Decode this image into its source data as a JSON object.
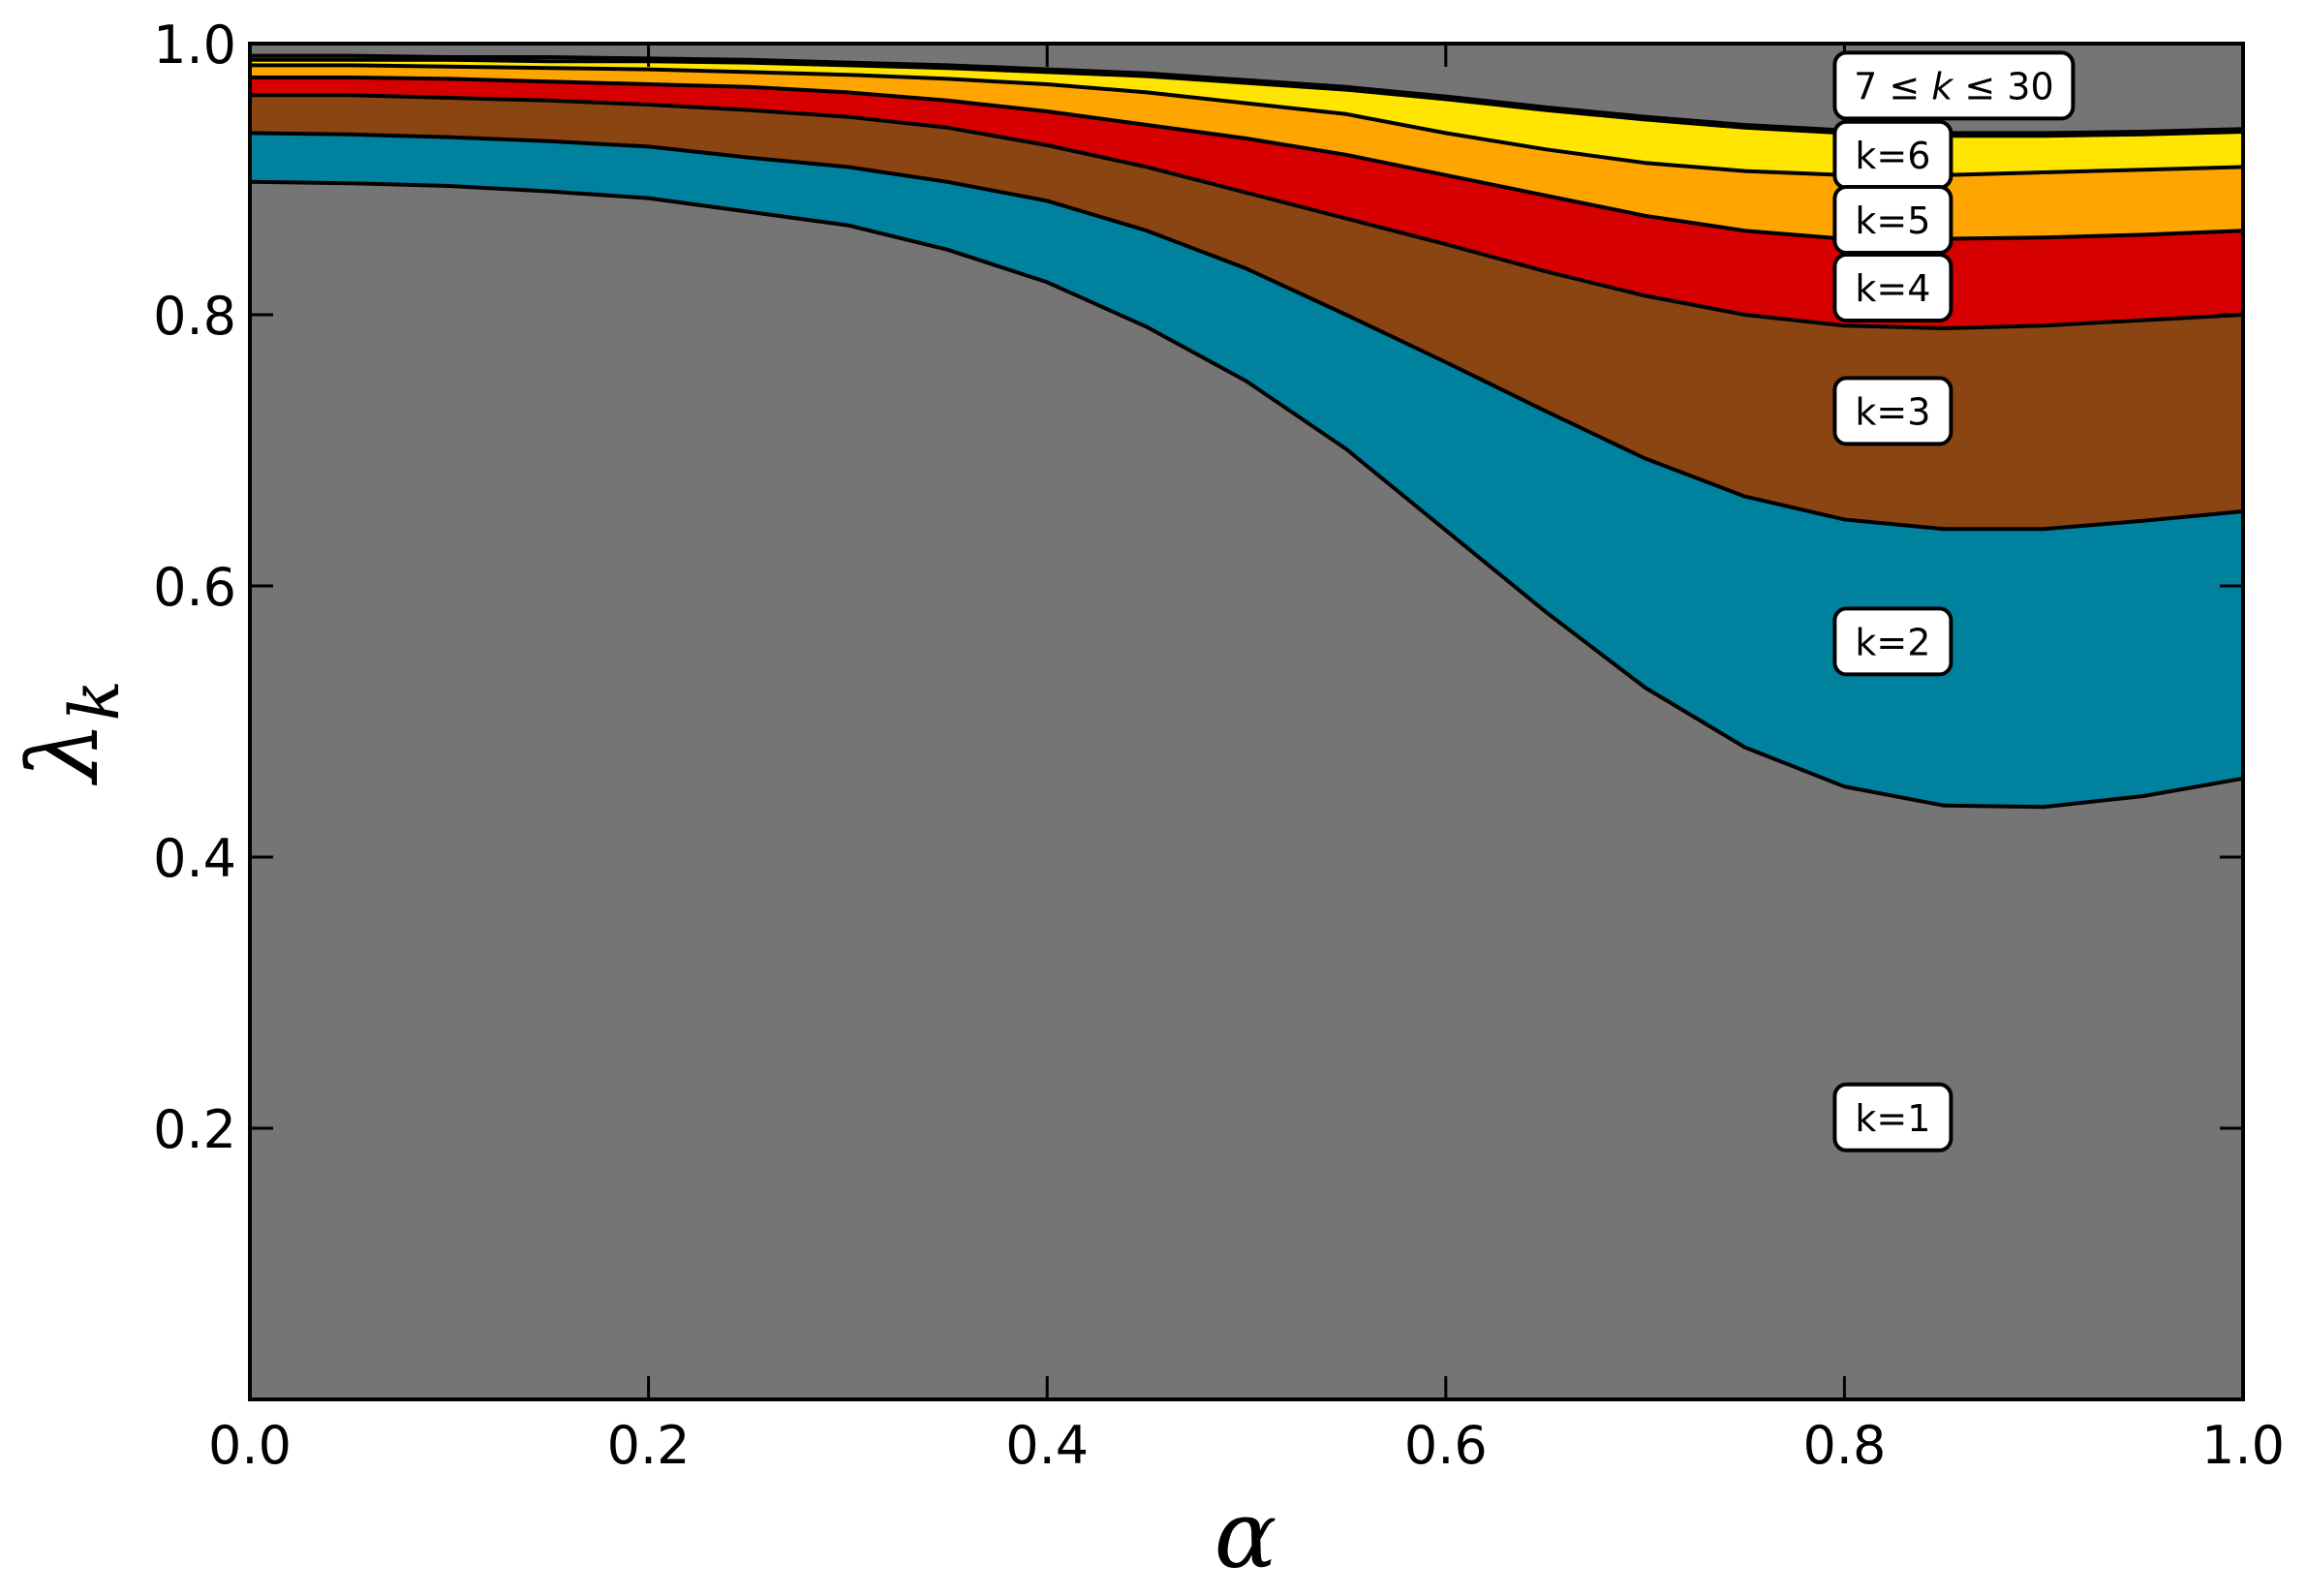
{
  "chart_data": {
    "type": "area",
    "stacked": true,
    "title": "",
    "xlabel": "α",
    "ylabel": "λ_k",
    "ylabel_main": "λ",
    "ylabel_sub": "k",
    "xlim": [
      0.0,
      1.0
    ],
    "ylim": [
      0.0,
      1.0
    ],
    "xticks": [
      0.0,
      0.2,
      0.4,
      0.6,
      0.8,
      1.0
    ],
    "xtick_labels": [
      "0.0",
      "0.2",
      "0.4",
      "0.6",
      "0.8",
      "1.0"
    ],
    "yticks": [
      0.2,
      0.4,
      0.6,
      0.8,
      1.0
    ],
    "ytick_labels": [
      "0.2",
      "0.4",
      "0.6",
      "0.8",
      "1.0"
    ],
    "grid": false,
    "tick_direction": "in",
    "background_color": "#757575",
    "x": [
      0.0,
      0.05,
      0.1,
      0.15,
      0.2,
      0.25,
      0.3,
      0.35,
      0.4,
      0.45,
      0.5,
      0.55,
      0.6,
      0.65,
      0.7,
      0.75,
      0.8,
      0.85,
      0.9,
      0.95,
      1.0
    ],
    "cumulative_series": [
      {
        "name": "k=1",
        "label": "k=1",
        "color": "#757575",
        "values": [
          0.898,
          0.897,
          0.895,
          0.891,
          0.886,
          0.876,
          0.866,
          0.848,
          0.824,
          0.791,
          0.751,
          0.701,
          0.641,
          0.581,
          0.525,
          0.481,
          0.452,
          0.438,
          0.437,
          0.445,
          0.458
        ]
      },
      {
        "name": "k=2",
        "label": "k=2",
        "color": "#00829E",
        "values": [
          0.934,
          0.933,
          0.931,
          0.928,
          0.924,
          0.916,
          0.909,
          0.898,
          0.884,
          0.862,
          0.834,
          0.8,
          0.765,
          0.729,
          0.694,
          0.666,
          0.649,
          0.642,
          0.642,
          0.648,
          0.655
        ]
      },
      {
        "name": "k=3",
        "label": "k=3",
        "color": "#8B4513",
        "values": [
          0.962,
          0.962,
          0.96,
          0.958,
          0.955,
          0.951,
          0.946,
          0.938,
          0.925,
          0.909,
          0.89,
          0.871,
          0.852,
          0.832,
          0.814,
          0.8,
          0.792,
          0.79,
          0.792,
          0.796,
          0.8
        ]
      },
      {
        "name": "k=4",
        "label": "k=4",
        "color": "#D60000",
        "values": [
          0.975,
          0.975,
          0.974,
          0.972,
          0.97,
          0.968,
          0.964,
          0.958,
          0.95,
          0.94,
          0.93,
          0.918,
          0.903,
          0.888,
          0.873,
          0.862,
          0.856,
          0.856,
          0.857,
          0.859,
          0.862
        ]
      },
      {
        "name": "k=5",
        "label": "k=5",
        "color": "#FFA500",
        "values": [
          0.984,
          0.984,
          0.983,
          0.982,
          0.981,
          0.979,
          0.977,
          0.974,
          0.97,
          0.964,
          0.956,
          0.948,
          0.934,
          0.922,
          0.912,
          0.906,
          0.903,
          0.903,
          0.905,
          0.907,
          0.909
        ]
      },
      {
        "name": "k=6",
        "label": "k=6",
        "color": "#FFE500",
        "values": [
          0.988,
          0.988,
          0.988,
          0.987,
          0.987,
          0.986,
          0.984,
          0.982,
          0.979,
          0.976,
          0.971,
          0.966,
          0.959,
          0.951,
          0.944,
          0.938,
          0.934,
          0.932,
          0.932,
          0.933,
          0.935
        ]
      },
      {
        "name": "7≤k≤30",
        "label": "7 ≤ k ≤ 30",
        "color": "#FFE500",
        "values": [
          0.991,
          0.991,
          0.99,
          0.99,
          0.989,
          0.988,
          0.986,
          0.984,
          0.981,
          0.978,
          0.973,
          0.968,
          0.961,
          0.953,
          0.946,
          0.94,
          0.936,
          0.934,
          0.934,
          0.935,
          0.937
        ]
      }
    ],
    "annotations": [
      {
        "text_parts": [
          "7",
          " ≤ ",
          "k",
          " ≤ 30"
        ],
        "italic_part": 2,
        "x": 0.8,
        "y": 0.969
      },
      {
        "text": "k=6",
        "x": 0.8,
        "y": 0.918
      },
      {
        "text": "k=5",
        "x": 0.8,
        "y": 0.87
      },
      {
        "text": "k=4",
        "x": 0.8,
        "y": 0.82
      },
      {
        "text": "k=3",
        "x": 0.8,
        "y": 0.729
      },
      {
        "text": "k=2",
        "x": 0.8,
        "y": 0.559
      },
      {
        "text": "k=1",
        "x": 0.8,
        "y": 0.208
      }
    ]
  }
}
